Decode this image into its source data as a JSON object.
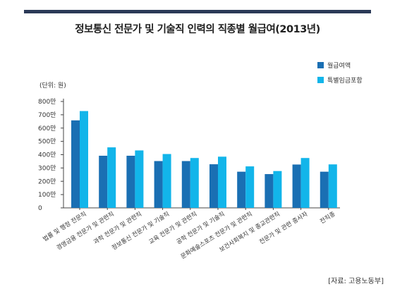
{
  "chart_data": {
    "type": "bar",
    "title": "정보통신 전문가 및 기술직 인력의 직종별 월급여(2013년)",
    "unit_label": "(단위: 원)",
    "source": "[자료: 고용노동부]",
    "ylim": [
      0,
      800
    ],
    "yticks": [
      0,
      100,
      200,
      300,
      400,
      500,
      600,
      700,
      800
    ],
    "ytick_labels": [
      "0",
      "100만",
      "200만",
      "300만",
      "400만",
      "500만",
      "600만",
      "700만",
      "800만"
    ],
    "grid": false,
    "legend_position": "top-right",
    "categories": [
      "법률 및 행정 전문직",
      "경영금융 전문가 및 관련직",
      "과학 전문가 및 관련직",
      "정보통신 전문가 및 기술직",
      "교육 전문가 및 관련직",
      "공학 전문가 및 기술직",
      "문화예술스포츠 전문가 및 관련직",
      "보건사회복지 및 종교관련직",
      "전문가 및 관련 종사자",
      "전직종"
    ],
    "series": [
      {
        "name": "월급여액",
        "color": "#1a6fb3",
        "values": [
          658,
          392,
          392,
          352,
          352,
          328,
          272,
          254,
          326,
          272
        ]
      },
      {
        "name": "특별임금포함",
        "color": "#12b5ea",
        "values": [
          728,
          455,
          432,
          405,
          375,
          385,
          312,
          277,
          375,
          327
        ]
      }
    ]
  }
}
